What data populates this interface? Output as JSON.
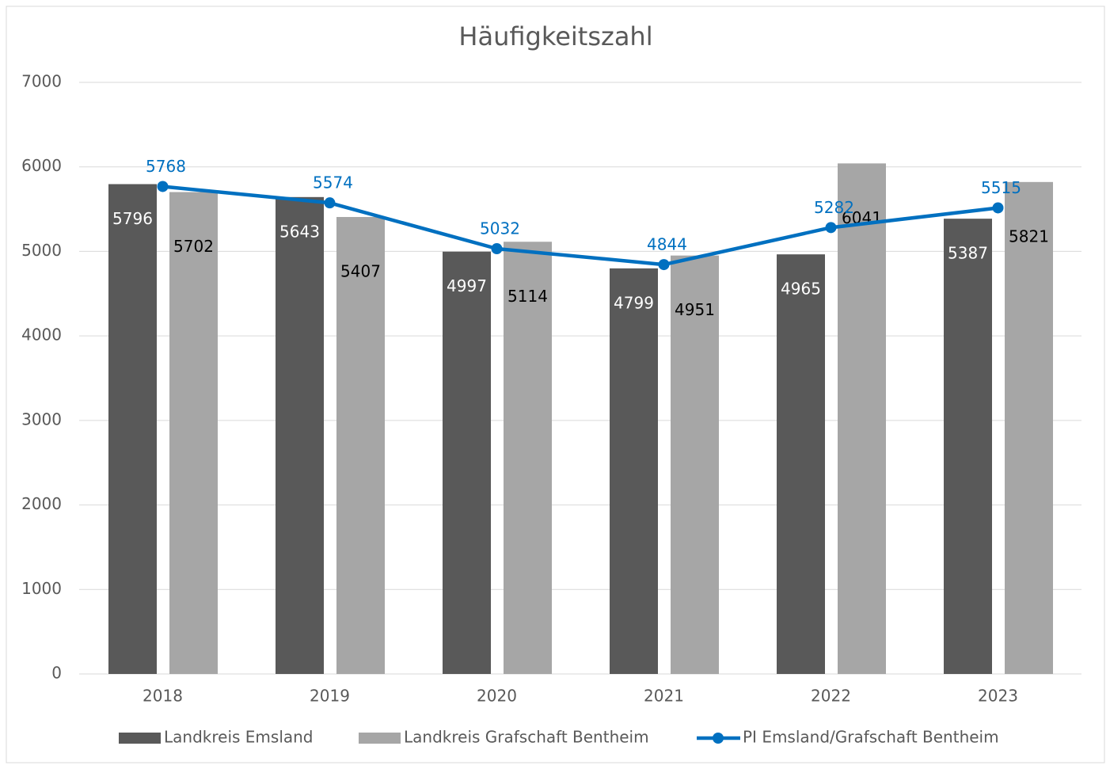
{
  "chart_data": {
    "type": "bar",
    "title": "Häufigkeitszahl",
    "categories": [
      "2018",
      "2019",
      "2020",
      "2021",
      "2022",
      "2023"
    ],
    "series": [
      {
        "name": "Landkreis Emsland",
        "type": "bar",
        "color": "#595959",
        "label_color": "#ffffff",
        "values": [
          5796,
          5643,
          4997,
          4799,
          4965,
          5387
        ]
      },
      {
        "name": "Landkreis Grafschaft Bentheim",
        "type": "bar",
        "color": "#a6a6a6",
        "label_color": "#000000",
        "values": [
          5702,
          5407,
          5114,
          4951,
          6041,
          5821
        ]
      },
      {
        "name": "PI Emsland/Grafschaft Bentheim",
        "type": "line",
        "color": "#0070c0",
        "label_color": "#0070c0",
        "values": [
          5768,
          5574,
          5032,
          4844,
          5282,
          5515
        ]
      }
    ],
    "ylim": [
      0,
      7000
    ],
    "yticks": [
      0,
      1000,
      2000,
      3000,
      4000,
      5000,
      6000,
      7000
    ],
    "grid": true,
    "legend": "bottom"
  }
}
